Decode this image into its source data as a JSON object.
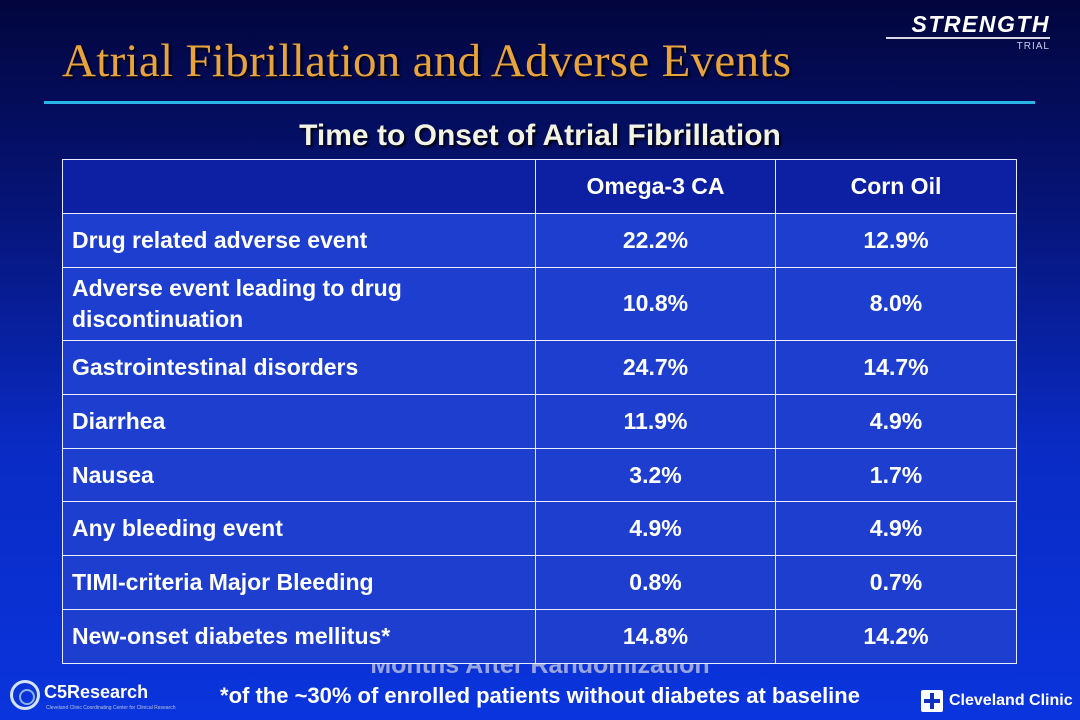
{
  "slide": {
    "title": "Atrial Fibrillation and Adverse Events",
    "subtitle": "Time to Onset of Atrial Fibrillation",
    "background_caption": "Months After Randomization",
    "footnote": "*of the ~30% of enrolled patients without diabetes at baseline"
  },
  "brand": {
    "name": "STRENGTH",
    "sub": "TRIAL"
  },
  "table": {
    "headers": [
      "",
      "Omega-3 CA",
      "Corn Oil"
    ],
    "rows": [
      {
        "label": "Drug related adverse event",
        "omega3": "22.2%",
        "corn_oil": "12.9%"
      },
      {
        "label": "Adverse event leading to drug discontinuation",
        "omega3": "10.8%",
        "corn_oil": "8.0%"
      },
      {
        "label": "Gastrointestinal disorders",
        "omega3": "24.7%",
        "corn_oil": "14.7%"
      },
      {
        "label": "Diarrhea",
        "omega3": "11.9%",
        "corn_oil": "4.9%"
      },
      {
        "label": "Nausea",
        "omega3": "3.2%",
        "corn_oil": "1.7%"
      },
      {
        "label": "Any bleeding event",
        "omega3": "4.9%",
        "corn_oil": "4.9%"
      },
      {
        "label": "TIMI-criteria Major Bleeding",
        "omega3": "0.8%",
        "corn_oil": "0.7%"
      },
      {
        "label": "New-onset diabetes mellitus*",
        "omega3": "14.8%",
        "corn_oil": "14.2%"
      }
    ]
  },
  "logos": {
    "left": {
      "name": "C5Research",
      "icon": "c5research-logo-icon",
      "tagline": "Cleveland Clinic Coordinating Center for Clinical Research"
    },
    "right": {
      "name": "Cleveland Clinic",
      "icon": "cleveland-clinic-cross-icon"
    }
  },
  "colors": {
    "title": "#e8a43a",
    "rule": "#2ab5e8",
    "table_fill": "#1e3ed0",
    "header_fill": "#0d1fa3",
    "background_top": "#02053d",
    "background_bottom": "#0a34dd"
  }
}
